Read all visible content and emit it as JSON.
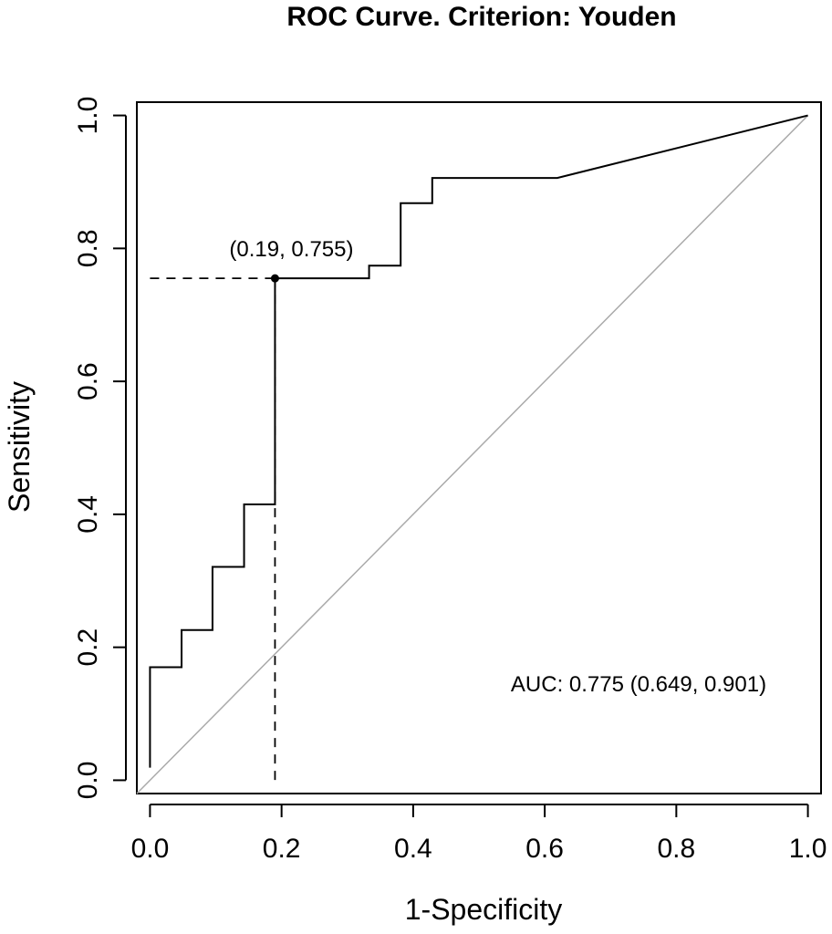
{
  "chart_data": {
    "type": "line",
    "title": "ROC Curve. Criterion: Youden",
    "xlabel": "1-Specificity",
    "ylabel": "Sensitivity",
    "xlim": [
      -0.02,
      1.02
    ],
    "ylim": [
      -0.02,
      1.02
    ],
    "x_ticks": [
      "0.0",
      "0.2",
      "0.4",
      "0.6",
      "0.8",
      "1.0"
    ],
    "y_ticks": [
      "0.0",
      "0.2",
      "0.4",
      "0.6",
      "0.8",
      "1.0"
    ],
    "series": [
      {
        "x": [
          0.0,
          0.0,
          0.048,
          0.048,
          0.095,
          0.095,
          0.143,
          0.143,
          0.19,
          0.19,
          0.333,
          0.333,
          0.381,
          0.381,
          0.429,
          0.429,
          0.619,
          1.0
        ],
        "y": [
          0.019,
          0.17,
          0.17,
          0.226,
          0.226,
          0.321,
          0.321,
          0.415,
          0.415,
          0.755,
          0.755,
          0.774,
          0.774,
          0.868,
          0.868,
          0.906,
          0.906,
          1.0
        ],
        "color": "#000000"
      }
    ],
    "reference_line": {
      "x": [
        -0.02,
        1.0
      ],
      "y": [
        -0.02,
        1.0
      ],
      "color": "#aaaaaa"
    },
    "optimal_point": {
      "x": 0.19,
      "y": 0.755,
      "label": "(0.19, 0.755)"
    },
    "auc_label": "AUC: 0.775 (0.649, 0.901)",
    "grid": false
  }
}
